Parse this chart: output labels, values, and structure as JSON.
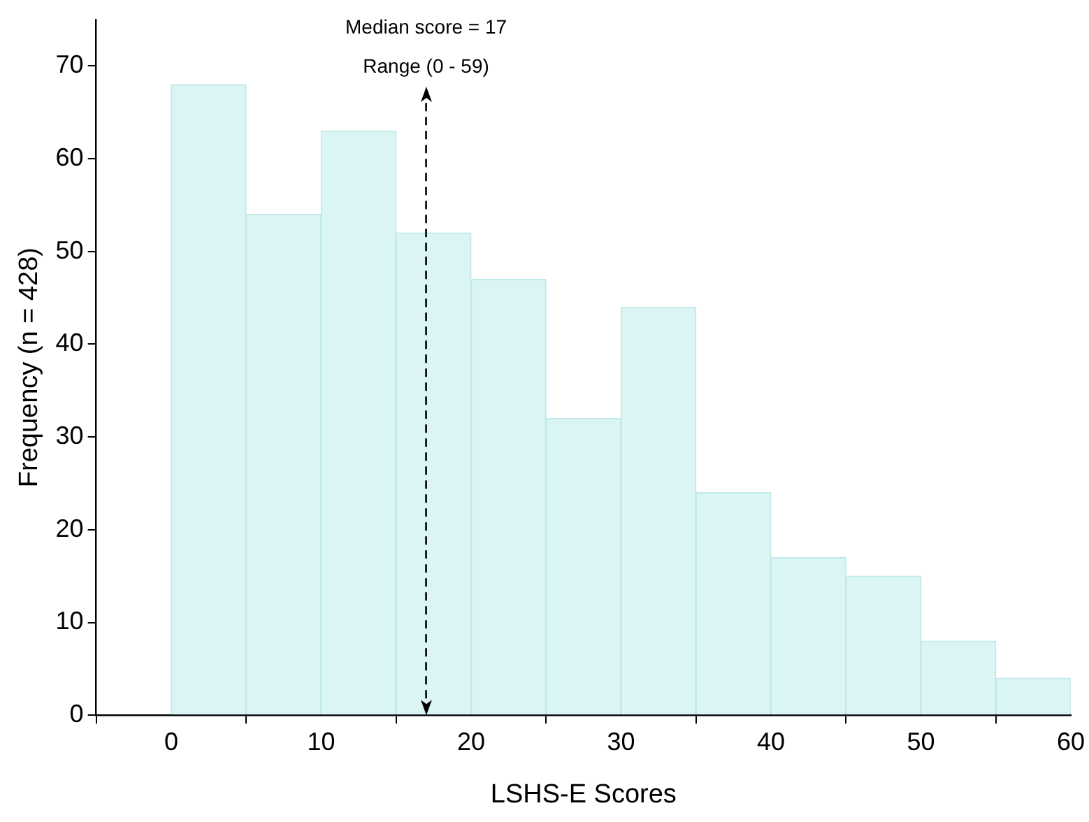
{
  "chart_data": {
    "type": "histogram",
    "xlabel": "LSHS-E Scores",
    "ylabel": "Frequency (n = 428)",
    "bins": [
      0,
      5,
      10,
      15,
      20,
      25,
      30,
      35,
      40,
      45,
      50,
      55,
      60
    ],
    "values": [
      68,
      54,
      63,
      52,
      47,
      32,
      44,
      24,
      17,
      15,
      8,
      4
    ],
    "color": "#dbf5f5",
    "xlim": [
      -5,
      60
    ],
    "xticks": [
      0,
      10,
      20,
      30,
      40,
      50,
      60
    ],
    "ylim": [
      0,
      75
    ],
    "yticks": [
      0,
      10,
      20,
      30,
      40,
      50,
      60,
      70
    ],
    "ref_lines": [
      {
        "axis": "x",
        "value": 17,
        "label": "Median score = 17",
        "line_style": "dashed",
        "color": "#000000"
      }
    ],
    "annotations": [
      "Range (0 - 59)"
    ],
    "grid": false,
    "legend": false
  }
}
